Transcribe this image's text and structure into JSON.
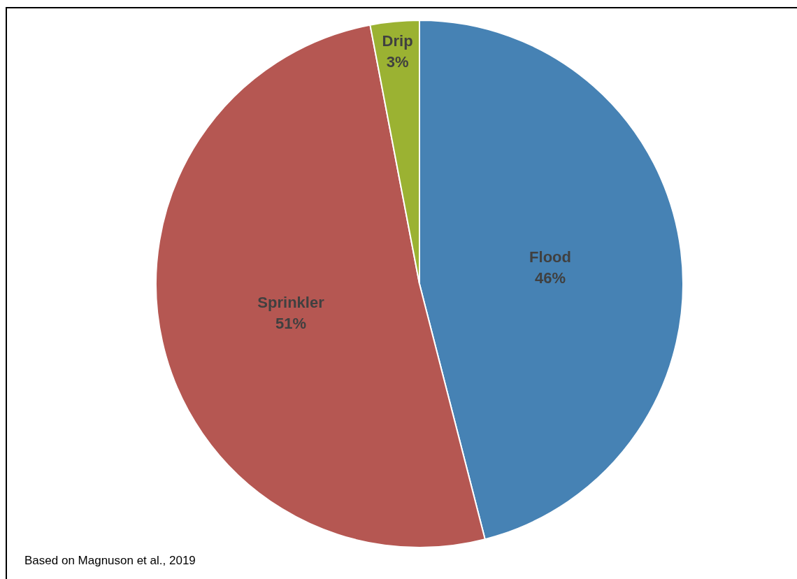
{
  "chart_data": {
    "type": "pie",
    "categories": [
      "Flood",
      "Sprinkler",
      "Drip"
    ],
    "values": [
      46,
      51,
      3
    ],
    "colors": [
      "#4682b4",
      "#b55752",
      "#9bb232"
    ],
    "value_labels": [
      "46%",
      "51%",
      "3%"
    ],
    "annotations": [
      "Based on Magnuson et al., 2019"
    ]
  }
}
